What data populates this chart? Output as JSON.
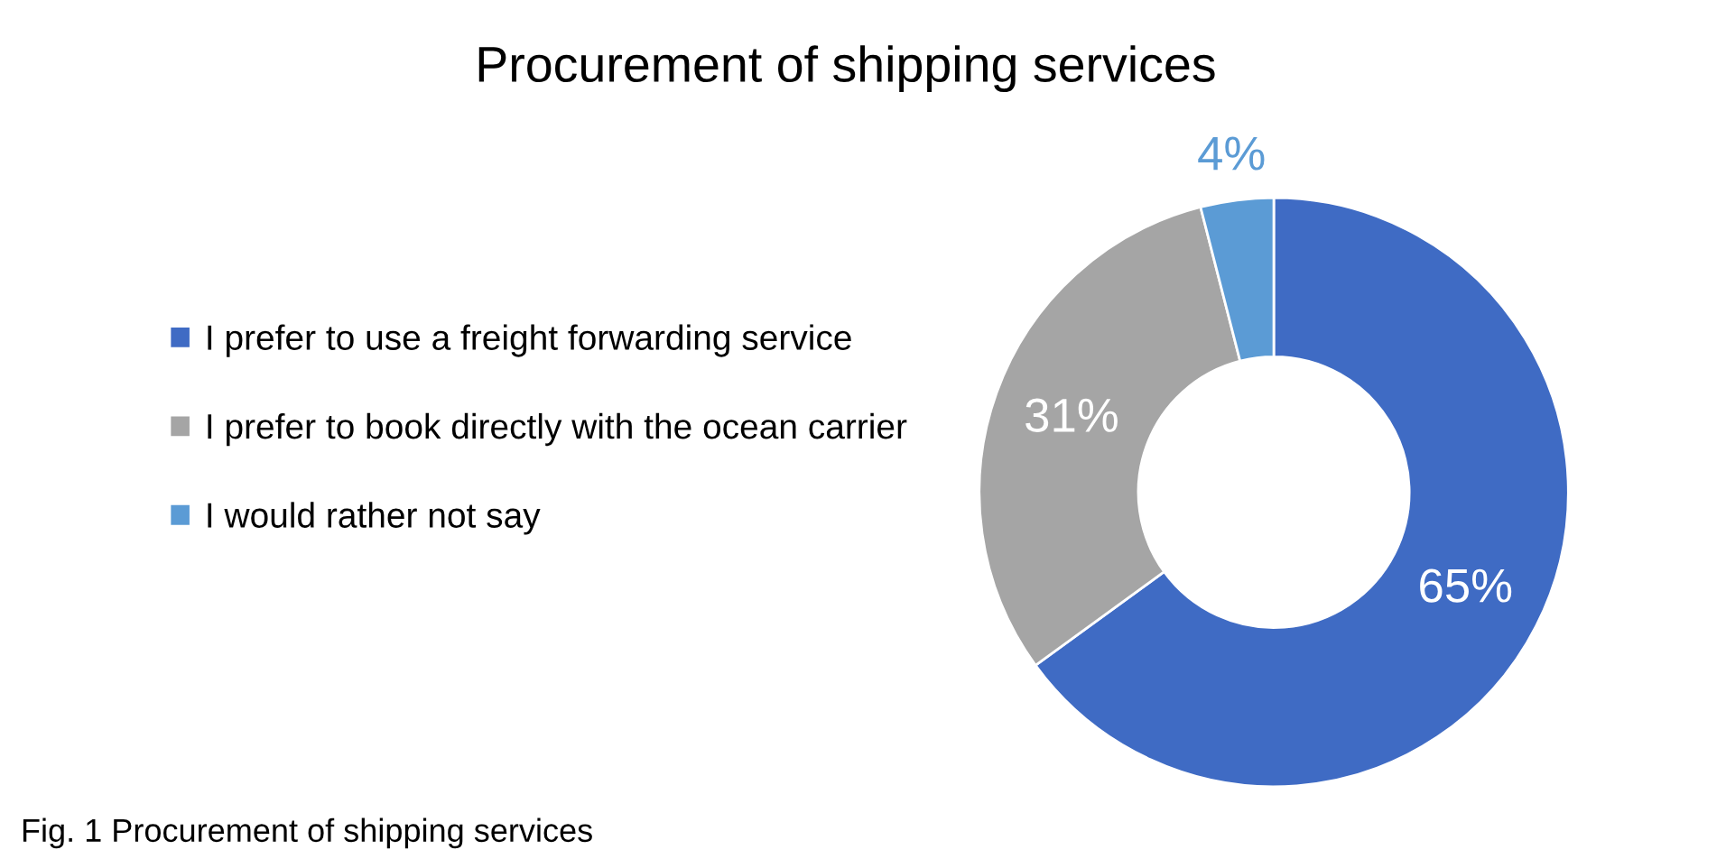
{
  "chart_data": {
    "type": "donut",
    "title": "Procurement of shipping services",
    "categories": [
      "I prefer to use a freight forwarding service",
      "I prefer to book directly with the ocean carrier",
      "I would rather not say"
    ],
    "values": [
      65,
      31,
      4
    ],
    "colors": [
      "#3f6bc4",
      "#a5a5a5",
      "#5b9bd5"
    ],
    "value_labels": [
      "65%",
      "31%",
      "4%"
    ],
    "legend": "left",
    "annotations": [
      "Fig. 1 Procurement of shipping services"
    ]
  }
}
